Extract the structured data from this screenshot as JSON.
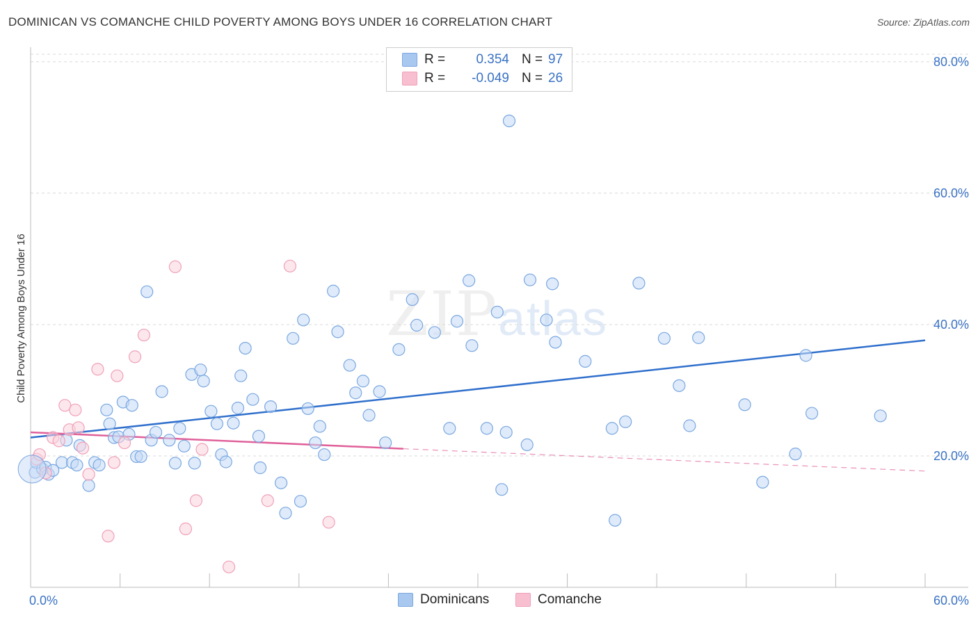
{
  "title": "DOMINICAN VS COMANCHE CHILD POVERTY AMONG BOYS UNDER 16 CORRELATION CHART",
  "source": "Source: ZipAtlas.com",
  "watermark": {
    "zip": "ZIP",
    "atlas": "atlas"
  },
  "legend": {
    "rows": [
      {
        "label": "R =",
        "r": "0.354",
        "n_label": "N =",
        "n": "97",
        "color": "#a9c8f0"
      },
      {
        "label": "R =",
        "r": "-0.049",
        "n_label": "N =",
        "n": "26",
        "color": "#f7bfd0"
      }
    ]
  },
  "bottom_legend": [
    {
      "name": "Dominicans",
      "color": "#a9c8f0"
    },
    {
      "name": "Comanche",
      "color": "#f7bfd0"
    }
  ],
  "chart_data": {
    "type": "scatter",
    "ylabel": "Child Poverty Among Boys Under 16",
    "xlim": [
      0,
      60
    ],
    "ylim": [
      0,
      82
    ],
    "y_ticks": [
      {
        "value": 20,
        "label": "20.0%"
      },
      {
        "value": 40,
        "label": "40.0%"
      },
      {
        "value": 60,
        "label": "60.0%"
      },
      {
        "value": 80,
        "label": "80.0%"
      }
    ],
    "x_tick_labels": [
      {
        "value": 0,
        "label": "0.0%"
      },
      {
        "value": 60,
        "label": "60.0%"
      }
    ],
    "grid": true,
    "series": [
      {
        "name": "Dominicans",
        "color": "#7aa7e0",
        "fill": "#c5daf5",
        "trend": {
          "x": [
            0,
            60
          ],
          "y": [
            22.8,
            37.6
          ],
          "color": "#2f6fcc"
        },
        "points": [
          [
            0.3,
            17.5
          ],
          [
            0.4,
            19.0
          ],
          [
            0.8,
            18.0
          ],
          [
            1.0,
            18.3
          ],
          [
            1.2,
            17.2
          ],
          [
            1.5,
            17.8
          ],
          [
            2.1,
            19.0
          ],
          [
            2.4,
            22.4
          ],
          [
            2.8,
            19.0
          ],
          [
            3.1,
            18.6
          ],
          [
            3.3,
            21.6
          ],
          [
            3.9,
            15.5
          ],
          [
            4.3,
            19.0
          ],
          [
            4.6,
            18.6
          ],
          [
            5.1,
            27.0
          ],
          [
            5.3,
            24.9
          ],
          [
            5.6,
            22.8
          ],
          [
            5.9,
            22.9
          ],
          [
            6.2,
            28.2
          ],
          [
            6.6,
            23.3
          ],
          [
            6.8,
            27.7
          ],
          [
            7.1,
            19.9
          ],
          [
            7.4,
            19.9
          ],
          [
            7.8,
            45.0
          ],
          [
            8.1,
            22.4
          ],
          [
            8.4,
            23.6
          ],
          [
            8.8,
            29.8
          ],
          [
            9.3,
            22.4
          ],
          [
            9.7,
            18.9
          ],
          [
            10.0,
            24.2
          ],
          [
            10.3,
            21.5
          ],
          [
            10.8,
            32.4
          ],
          [
            11.0,
            18.9
          ],
          [
            11.4,
            33.1
          ],
          [
            11.6,
            31.4
          ],
          [
            12.1,
            26.8
          ],
          [
            12.5,
            24.9
          ],
          [
            12.8,
            20.2
          ],
          [
            13.1,
            19.1
          ],
          [
            13.6,
            25.0
          ],
          [
            13.9,
            27.3
          ],
          [
            14.1,
            32.2
          ],
          [
            14.4,
            36.4
          ],
          [
            14.9,
            28.6
          ],
          [
            15.3,
            23.0
          ],
          [
            15.4,
            18.2
          ],
          [
            16.1,
            27.5
          ],
          [
            16.8,
            15.9
          ],
          [
            17.1,
            11.3
          ],
          [
            17.6,
            37.9
          ],
          [
            18.1,
            13.1
          ],
          [
            18.3,
            40.7
          ],
          [
            18.6,
            27.2
          ],
          [
            19.1,
            22.0
          ],
          [
            19.4,
            24.5
          ],
          [
            19.7,
            20.2
          ],
          [
            20.3,
            45.1
          ],
          [
            20.6,
            38.9
          ],
          [
            21.4,
            33.8
          ],
          [
            21.8,
            29.6
          ],
          [
            22.3,
            31.4
          ],
          [
            22.7,
            26.2
          ],
          [
            23.4,
            29.8
          ],
          [
            23.8,
            22.0
          ],
          [
            24.7,
            36.2
          ],
          [
            25.6,
            43.8
          ],
          [
            25.9,
            39.9
          ],
          [
            27.1,
            38.8
          ],
          [
            28.1,
            24.2
          ],
          [
            28.6,
            40.5
          ],
          [
            29.4,
            46.7
          ],
          [
            29.6,
            36.8
          ],
          [
            30.6,
            24.2
          ],
          [
            31.3,
            41.9
          ],
          [
            31.6,
            14.9
          ],
          [
            31.9,
            23.6
          ],
          [
            32.1,
            71.0
          ],
          [
            33.3,
            21.7
          ],
          [
            33.5,
            46.8
          ],
          [
            34.6,
            40.7
          ],
          [
            35.0,
            46.2
          ],
          [
            35.2,
            37.3
          ],
          [
            37.2,
            34.4
          ],
          [
            39.0,
            24.2
          ],
          [
            39.2,
            10.2
          ],
          [
            39.9,
            25.2
          ],
          [
            40.8,
            46.3
          ],
          [
            42.5,
            37.9
          ],
          [
            43.5,
            30.7
          ],
          [
            44.2,
            24.6
          ],
          [
            44.8,
            38.0
          ],
          [
            47.9,
            27.8
          ],
          [
            49.1,
            16.0
          ],
          [
            51.3,
            20.3
          ],
          [
            52.0,
            35.3
          ],
          [
            52.4,
            26.5
          ],
          [
            57.0,
            26.1
          ]
        ]
      },
      {
        "name": "Comanche",
        "color": "#f0a0b8",
        "fill": "#fad3df",
        "trend": {
          "x": [
            0,
            25
          ],
          "y": [
            23.6,
            21.1
          ],
          "dash_x": [
            25,
            60
          ],
          "dash_y": [
            21.1,
            17.7
          ],
          "color": "#e0609a"
        },
        "points": [
          [
            0.4,
            19.5
          ],
          [
            0.6,
            20.2
          ],
          [
            1.0,
            17.4
          ],
          [
            1.5,
            22.8
          ],
          [
            1.9,
            22.3
          ],
          [
            2.3,
            27.7
          ],
          [
            2.6,
            24.0
          ],
          [
            3.0,
            27.0
          ],
          [
            3.2,
            24.3
          ],
          [
            3.5,
            21.2
          ],
          [
            3.9,
            17.2
          ],
          [
            4.5,
            33.2
          ],
          [
            5.2,
            7.8
          ],
          [
            5.6,
            19.0
          ],
          [
            5.8,
            32.2
          ],
          [
            6.3,
            22.0
          ],
          [
            7.0,
            35.1
          ],
          [
            7.6,
            38.4
          ],
          [
            9.7,
            48.8
          ],
          [
            10.4,
            8.9
          ],
          [
            11.1,
            13.2
          ],
          [
            11.5,
            21.0
          ],
          [
            13.3,
            3.1
          ],
          [
            15.9,
            13.2
          ],
          [
            17.4,
            48.9
          ],
          [
            20.0,
            9.9
          ]
        ]
      }
    ]
  }
}
